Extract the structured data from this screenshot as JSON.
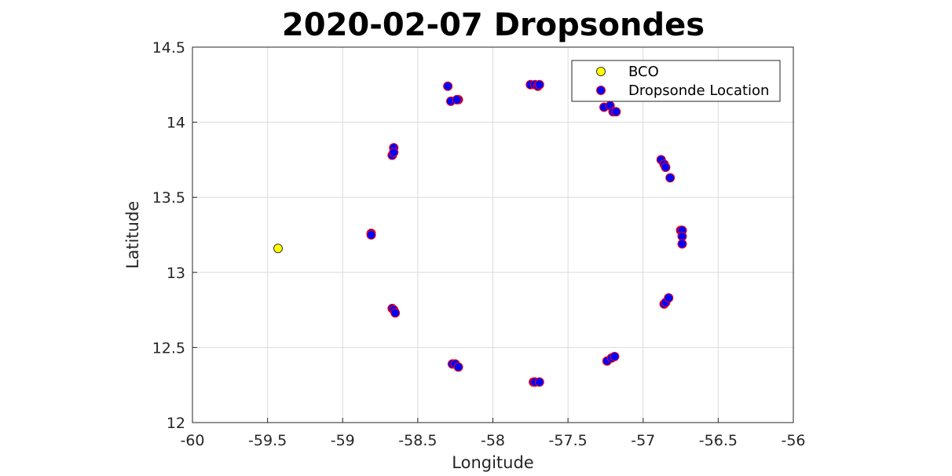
{
  "chart_data": {
    "type": "scatter",
    "title": "2020-02-07 Dropsondes",
    "xlabel": "Longitude",
    "ylabel": "Latitude",
    "xlim": [
      -60,
      -56
    ],
    "ylim": [
      12,
      14.5
    ],
    "xticks": [
      -60,
      -59.5,
      -59,
      -58.5,
      -58,
      -57.5,
      -57,
      -56.5,
      -56
    ],
    "xtick_labels": [
      "-60",
      "-59.5",
      "-59",
      "-58.5",
      "-58",
      "-57.5",
      "-57",
      "-56.5",
      "-56"
    ],
    "yticks": [
      12,
      12.5,
      13,
      13.5,
      14,
      14.5
    ],
    "ytick_labels": [
      "12",
      "12.5",
      "13",
      "13.5",
      "14",
      "14.5"
    ],
    "grid": true,
    "legend_position": "top-right",
    "series": [
      {
        "name": "BCO",
        "color": "#ffff00",
        "edge_color": "#333333",
        "points": [
          [
            -59.43,
            13.16
          ]
        ]
      },
      {
        "name": "Dropsonde Location",
        "color": "#0000ff",
        "edge_color": "#ff0000",
        "points": [
          [
            -58.3,
            14.24
          ],
          [
            -58.28,
            14.14
          ],
          [
            -58.23,
            14.15
          ],
          [
            -58.24,
            14.15
          ],
          [
            -57.75,
            14.25
          ],
          [
            -57.72,
            14.25
          ],
          [
            -57.7,
            14.24
          ],
          [
            -57.69,
            14.25
          ],
          [
            -57.26,
            14.1
          ],
          [
            -57.22,
            14.11
          ],
          [
            -57.2,
            14.07
          ],
          [
            -57.18,
            14.07
          ],
          [
            -58.66,
            13.83
          ],
          [
            -58.67,
            13.78
          ],
          [
            -58.66,
            13.8
          ],
          [
            -56.88,
            13.75
          ],
          [
            -56.86,
            13.72
          ],
          [
            -56.85,
            13.7
          ],
          [
            -56.82,
            13.63
          ],
          [
            -58.81,
            13.26
          ],
          [
            -58.81,
            13.25
          ],
          [
            -56.75,
            13.28
          ],
          [
            -56.74,
            13.28
          ],
          [
            -56.74,
            13.24
          ],
          [
            -56.74,
            13.19
          ],
          [
            -58.67,
            12.76
          ],
          [
            -58.66,
            12.75
          ],
          [
            -58.65,
            12.73
          ],
          [
            -56.86,
            12.79
          ],
          [
            -56.85,
            12.8
          ],
          [
            -56.83,
            12.83
          ],
          [
            -58.27,
            12.39
          ],
          [
            -58.25,
            12.39
          ],
          [
            -58.23,
            12.37
          ],
          [
            -57.24,
            12.41
          ],
          [
            -57.21,
            12.43
          ],
          [
            -57.19,
            12.44
          ],
          [
            -57.73,
            12.27
          ],
          [
            -57.72,
            12.27
          ],
          [
            -57.69,
            12.27
          ]
        ]
      }
    ]
  }
}
